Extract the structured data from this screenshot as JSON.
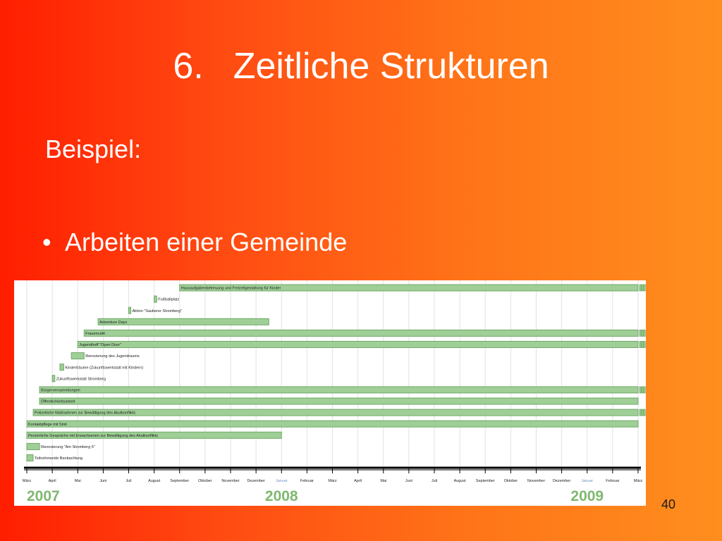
{
  "slide": {
    "title_number": "6.",
    "title_text": "Zeitliche Strukturen",
    "subtitle": "Beispiel:",
    "bullet_marker": "•",
    "bullet_text": "Arbeiten einer Gemeinde",
    "page_number": "40"
  },
  "chart_data": {
    "type": "gantt",
    "axis_unit": "months since März 2007",
    "x_range": [
      0,
      24
    ],
    "months": [
      {
        "label": "März",
        "i": 0
      },
      {
        "label": "April",
        "i": 1
      },
      {
        "label": "Mai",
        "i": 2
      },
      {
        "label": "Juni",
        "i": 3
      },
      {
        "label": "Juli",
        "i": 4
      },
      {
        "label": "August",
        "i": 5
      },
      {
        "label": "September",
        "i": 6
      },
      {
        "label": "Oktober",
        "i": 7
      },
      {
        "label": "November",
        "i": 8
      },
      {
        "label": "Dezember",
        "i": 9
      },
      {
        "label": "Januar",
        "i": 10,
        "january": true
      },
      {
        "label": "Februar",
        "i": 11
      },
      {
        "label": "März",
        "i": 12
      },
      {
        "label": "April",
        "i": 13
      },
      {
        "label": "Mai",
        "i": 14
      },
      {
        "label": "Juni",
        "i": 15
      },
      {
        "label": "Juli",
        "i": 16
      },
      {
        "label": "August",
        "i": 17
      },
      {
        "label": "September",
        "i": 18
      },
      {
        "label": "Oktober",
        "i": 19
      },
      {
        "label": "November",
        "i": 20
      },
      {
        "label": "Dezember",
        "i": 21
      },
      {
        "label": "Januar",
        "i": 22,
        "january": true
      },
      {
        "label": "Februar",
        "i": 23
      },
      {
        "label": "März",
        "i": 24
      }
    ],
    "years": [
      {
        "label": "2007",
        "i": 0
      },
      {
        "label": "2008",
        "i": 10
      },
      {
        "label": "2009",
        "i": 22
      }
    ],
    "tasks": [
      {
        "label": "Hausaufgabenbetreuung und Freizeitgestaltung für Kinder",
        "start": 6.0,
        "end": 24.0,
        "ongoing": true
      },
      {
        "label": "Fußballplatz",
        "start": 5.0,
        "end": 5.1,
        "ongoing": false
      },
      {
        "label": "Aktion \"Sauberer Stromberg\"",
        "start": 4.0,
        "end": 4.05,
        "ongoing": false
      },
      {
        "label": "Adventure Days",
        "start": 2.8,
        "end": 9.5,
        "ongoing": false
      },
      {
        "label": "Frauencafé",
        "start": 2.25,
        "end": 24.0,
        "ongoing": true
      },
      {
        "label": "Jugendtreff \"Open Door\"",
        "start": 2.0,
        "end": 24.0,
        "ongoing": true
      },
      {
        "label": "Renovierung des Jugendraums",
        "start": 1.75,
        "end": 2.25,
        "ongoing": false
      },
      {
        "label": "Kinderträume (Zukunftswerkstatt mit Kindern)",
        "start": 1.3,
        "end": 1.45,
        "ongoing": false
      },
      {
        "label": "Zukunftswerkstatt Stromberg",
        "start": 1.0,
        "end": 1.1,
        "ongoing": false
      },
      {
        "label": "Bürgerversammlungen",
        "start": 0.5,
        "end": 24.0,
        "ongoing": true
      },
      {
        "label": "Öffentlichkeitsarbeit",
        "start": 0.5,
        "end": 24.0,
        "ongoing": false
      },
      {
        "label": "Polizeiliche Maßnahmen zur Bewältigung des Akutkonflikts",
        "start": 0.25,
        "end": 24.0,
        "ongoing": true
      },
      {
        "label": "Kontaktpflege mit Sinti",
        "start": 0.0,
        "end": 24.0,
        "ongoing": false
      },
      {
        "label": "Persönliche Gespräche mit Erwachsenen zur Bewältigung des Akutkonflikts",
        "start": 0.0,
        "end": 10.0,
        "ongoing": false
      },
      {
        "label": "Renovierung \"Am Stromberg 5\"",
        "start": 0.0,
        "end": 0.5,
        "ongoing": false
      },
      {
        "label": "Teilnehmende Beobachtung",
        "start": 0.0,
        "end": 0.25,
        "ongoing": false
      }
    ]
  }
}
